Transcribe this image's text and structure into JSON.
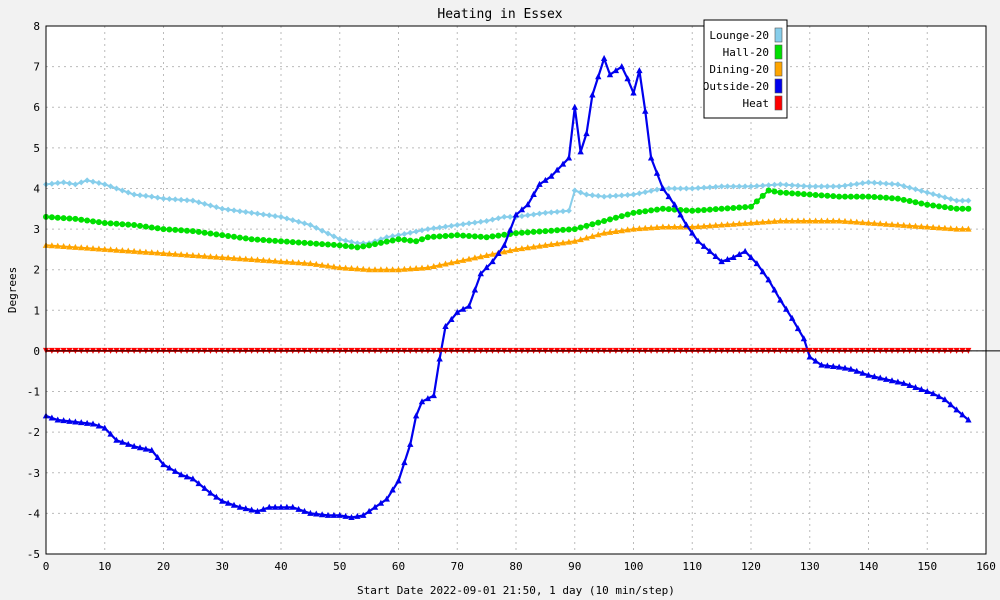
{
  "chart_data": {
    "type": "line",
    "title": "Heating in Essex",
    "xlabel": "Start Date 2022-09-01 21:50, 1 day (10 min/step)",
    "ylabel": "Degrees",
    "xlim": [
      0,
      160
    ],
    "ylim": [
      -5,
      8
    ],
    "x_ticks": [
      0,
      10,
      20,
      30,
      40,
      50,
      60,
      70,
      80,
      90,
      100,
      110,
      120,
      130,
      140,
      150,
      160
    ],
    "y_ticks": [
      -5,
      -4,
      -3,
      -2,
      -1,
      0,
      1,
      2,
      3,
      4,
      5,
      6,
      7,
      8
    ],
    "grid": true,
    "legend_position": "top-right",
    "series": [
      {
        "name": "Lounge-20",
        "color": "#87ceeb",
        "marker": "diamond",
        "points": [
          [
            0,
            4.1
          ],
          [
            3,
            4.15
          ],
          [
            5,
            4.1
          ],
          [
            7,
            4.2
          ],
          [
            10,
            4.1
          ],
          [
            13,
            3.95
          ],
          [
            15,
            3.85
          ],
          [
            18,
            3.8
          ],
          [
            20,
            3.75
          ],
          [
            25,
            3.7
          ],
          [
            30,
            3.5
          ],
          [
            35,
            3.4
          ],
          [
            40,
            3.3
          ],
          [
            45,
            3.1
          ],
          [
            50,
            2.75
          ],
          [
            53,
            2.65
          ],
          [
            55,
            2.65
          ],
          [
            58,
            2.8
          ],
          [
            60,
            2.85
          ],
          [
            65,
            3.0
          ],
          [
            70,
            3.1
          ],
          [
            75,
            3.2
          ],
          [
            78,
            3.3
          ],
          [
            80,
            3.3
          ],
          [
            85,
            3.4
          ],
          [
            89,
            3.45
          ],
          [
            90,
            3.95
          ],
          [
            92,
            3.85
          ],
          [
            95,
            3.8
          ],
          [
            100,
            3.85
          ],
          [
            105,
            4.0
          ],
          [
            110,
            4.0
          ],
          [
            115,
            4.05
          ],
          [
            120,
            4.05
          ],
          [
            125,
            4.1
          ],
          [
            130,
            4.05
          ],
          [
            135,
            4.05
          ],
          [
            140,
            4.15
          ],
          [
            145,
            4.1
          ],
          [
            150,
            3.9
          ],
          [
            155,
            3.7
          ],
          [
            157,
            3.7
          ]
        ]
      },
      {
        "name": "Hall-20",
        "color": "#00e000",
        "marker": "circle",
        "points": [
          [
            0,
            3.3
          ],
          [
            5,
            3.25
          ],
          [
            10,
            3.15
          ],
          [
            15,
            3.1
          ],
          [
            20,
            3.0
          ],
          [
            25,
            2.95
          ],
          [
            30,
            2.85
          ],
          [
            35,
            2.75
          ],
          [
            40,
            2.7
          ],
          [
            45,
            2.65
          ],
          [
            50,
            2.6
          ],
          [
            53,
            2.55
          ],
          [
            55,
            2.6
          ],
          [
            60,
            2.75
          ],
          [
            63,
            2.7
          ],
          [
            65,
            2.8
          ],
          [
            70,
            2.85
          ],
          [
            75,
            2.8
          ],
          [
            80,
            2.9
          ],
          [
            85,
            2.95
          ],
          [
            90,
            3.0
          ],
          [
            95,
            3.2
          ],
          [
            100,
            3.4
          ],
          [
            105,
            3.5
          ],
          [
            110,
            3.45
          ],
          [
            115,
            3.5
          ],
          [
            120,
            3.55
          ],
          [
            123,
            3.95
          ],
          [
            125,
            3.9
          ],
          [
            130,
            3.85
          ],
          [
            135,
            3.8
          ],
          [
            140,
            3.8
          ],
          [
            145,
            3.75
          ],
          [
            150,
            3.6
          ],
          [
            155,
            3.5
          ],
          [
            157,
            3.5
          ]
        ]
      },
      {
        "name": "Dining-20",
        "color": "#ffa500",
        "marker": "triangle",
        "points": [
          [
            0,
            2.6
          ],
          [
            5,
            2.55
          ],
          [
            10,
            2.5
          ],
          [
            15,
            2.45
          ],
          [
            20,
            2.4
          ],
          [
            25,
            2.35
          ],
          [
            30,
            2.3
          ],
          [
            35,
            2.25
          ],
          [
            40,
            2.2
          ],
          [
            45,
            2.15
          ],
          [
            50,
            2.05
          ],
          [
            55,
            2.0
          ],
          [
            60,
            2.0
          ],
          [
            65,
            2.05
          ],
          [
            70,
            2.2
          ],
          [
            75,
            2.35
          ],
          [
            80,
            2.5
          ],
          [
            85,
            2.6
          ],
          [
            90,
            2.7
          ],
          [
            95,
            2.9
          ],
          [
            100,
            3.0
          ],
          [
            105,
            3.05
          ],
          [
            110,
            3.05
          ],
          [
            115,
            3.1
          ],
          [
            120,
            3.15
          ],
          [
            125,
            3.2
          ],
          [
            130,
            3.2
          ],
          [
            135,
            3.2
          ],
          [
            140,
            3.15
          ],
          [
            145,
            3.1
          ],
          [
            150,
            3.05
          ],
          [
            155,
            3.0
          ],
          [
            157,
            3.0
          ]
        ]
      },
      {
        "name": "Outside-20",
        "color": "#0000ee",
        "marker": "triangle",
        "points": [
          [
            0,
            -1.6
          ],
          [
            2,
            -1.7
          ],
          [
            5,
            -1.75
          ],
          [
            8,
            -1.8
          ],
          [
            10,
            -1.9
          ],
          [
            12,
            -2.2
          ],
          [
            15,
            -2.35
          ],
          [
            18,
            -2.45
          ],
          [
            20,
            -2.8
          ],
          [
            23,
            -3.05
          ],
          [
            25,
            -3.15
          ],
          [
            28,
            -3.5
          ],
          [
            30,
            -3.7
          ],
          [
            33,
            -3.85
          ],
          [
            36,
            -3.95
          ],
          [
            38,
            -3.85
          ],
          [
            42,
            -3.85
          ],
          [
            45,
            -4.0
          ],
          [
            48,
            -4.05
          ],
          [
            50,
            -4.05
          ],
          [
            52,
            -4.1
          ],
          [
            54,
            -4.05
          ],
          [
            56,
            -3.85
          ],
          [
            58,
            -3.65
          ],
          [
            60,
            -3.2
          ],
          [
            62,
            -2.3
          ],
          [
            63,
            -1.6
          ],
          [
            64,
            -1.25
          ],
          [
            66,
            -1.1
          ],
          [
            67,
            -0.2
          ],
          [
            68,
            0.6
          ],
          [
            70,
            0.95
          ],
          [
            72,
            1.1
          ],
          [
            74,
            1.9
          ],
          [
            76,
            2.2
          ],
          [
            78,
            2.6
          ],
          [
            80,
            3.35
          ],
          [
            82,
            3.6
          ],
          [
            84,
            4.1
          ],
          [
            86,
            4.3
          ],
          [
            88,
            4.6
          ],
          [
            89,
            4.75
          ],
          [
            90,
            6.0
          ],
          [
            91,
            4.9
          ],
          [
            92,
            5.35
          ],
          [
            93,
            6.3
          ],
          [
            95,
            7.2
          ],
          [
            96,
            6.8
          ],
          [
            98,
            7.0
          ],
          [
            99,
            6.7
          ],
          [
            100,
            6.35
          ],
          [
            101,
            6.9
          ],
          [
            102,
            5.9
          ],
          [
            103,
            4.75
          ],
          [
            105,
            4.0
          ],
          [
            107,
            3.6
          ],
          [
            109,
            3.1
          ],
          [
            111,
            2.7
          ],
          [
            113,
            2.45
          ],
          [
            115,
            2.2
          ],
          [
            117,
            2.3
          ],
          [
            119,
            2.45
          ],
          [
            121,
            2.15
          ],
          [
            123,
            1.75
          ],
          [
            125,
            1.25
          ],
          [
            127,
            0.8
          ],
          [
            129,
            0.3
          ],
          [
            130,
            -0.15
          ],
          [
            132,
            -0.35
          ],
          [
            135,
            -0.4
          ],
          [
            137,
            -0.45
          ],
          [
            140,
            -0.6
          ],
          [
            143,
            -0.7
          ],
          [
            146,
            -0.8
          ],
          [
            149,
            -0.95
          ],
          [
            151,
            -1.05
          ],
          [
            153,
            -1.2
          ],
          [
            155,
            -1.45
          ],
          [
            157,
            -1.7
          ]
        ]
      },
      {
        "name": "Heat",
        "color": "#ff0000",
        "marker": "triangle-down",
        "points": [
          [
            0,
            0
          ],
          [
            157,
            0
          ]
        ]
      }
    ]
  }
}
